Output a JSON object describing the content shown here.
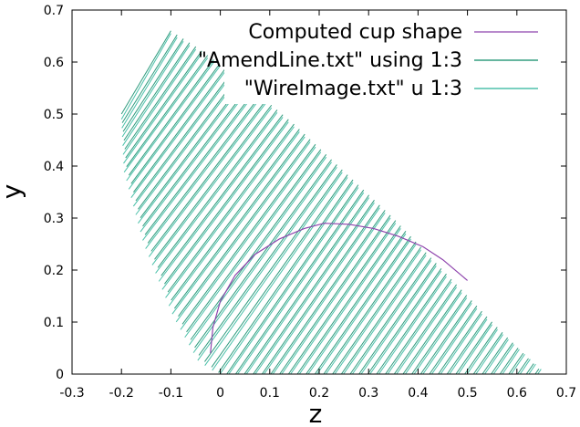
{
  "chart_data": {
    "type": "line",
    "title": "",
    "xlabel": "z",
    "ylabel": "y",
    "xlim": [
      -0.3,
      0.7
    ],
    "ylim": [
      0,
      0.7
    ],
    "x_ticks": [
      "-0.3",
      "-0.2",
      "-0.1",
      "0",
      "0.1",
      "0.2",
      "0.3",
      "0.4",
      "0.5",
      "0.6",
      "0.7"
    ],
    "y_ticks": [
      "0",
      "0.1",
      "0.2",
      "0.3",
      "0.4",
      "0.5",
      "0.6",
      "0.7"
    ],
    "grid": false,
    "legend_position": "top-right",
    "series": [
      {
        "name": "Computed cup shape",
        "color": "#8e44ad",
        "x": [
          -0.02,
          -0.015,
          0.0,
          0.03,
          0.07,
          0.12,
          0.17,
          0.21,
          0.26,
          0.31,
          0.36,
          0.41,
          0.45,
          0.5
        ],
        "y": [
          0.04,
          0.09,
          0.14,
          0.19,
          0.23,
          0.26,
          0.28,
          0.29,
          0.288,
          0.28,
          0.265,
          0.245,
          0.22,
          0.18
        ]
      },
      {
        "name": "\"AmendLine.txt\" using 1:3",
        "color": "#0b8a66",
        "style": "wire-fan",
        "top_edge": {
          "x": [
            -0.1,
            -0.05,
            0.05,
            0.15,
            0.25,
            0.35,
            0.45,
            0.55,
            0.655
          ],
          "y": [
            0.66,
            0.63,
            0.56,
            0.48,
            0.39,
            0.3,
            0.2,
            0.1,
            0.0
          ]
        },
        "bottom_edge": {
          "x": [
            -0.2,
            -0.19,
            -0.15,
            -0.09,
            -0.04,
            0.0,
            0.2,
            0.45,
            0.655
          ],
          "y": [
            0.5,
            0.4,
            0.26,
            0.12,
            0.03,
            0.0,
            0.0,
            0.0,
            0.0
          ]
        },
        "line_count": 70
      },
      {
        "name": "\"WireImage.txt\" u 1:3",
        "color": "#2ab59a",
        "style": "wire-fan",
        "top_edge": {
          "x": [
            -0.1,
            -0.05,
            0.05,
            0.15,
            0.25,
            0.35,
            0.45,
            0.55,
            0.66
          ],
          "y": [
            0.655,
            0.625,
            0.555,
            0.475,
            0.385,
            0.295,
            0.195,
            0.095,
            0.0
          ]
        },
        "bottom_edge": {
          "x": [
            -0.2,
            -0.195,
            -0.155,
            -0.095,
            -0.045,
            -0.005,
            0.2,
            0.45,
            0.66
          ],
          "y": [
            0.49,
            0.39,
            0.25,
            0.11,
            0.025,
            0.0,
            0.0,
            0.0,
            0.0
          ]
        },
        "line_count": 70
      }
    ]
  }
}
